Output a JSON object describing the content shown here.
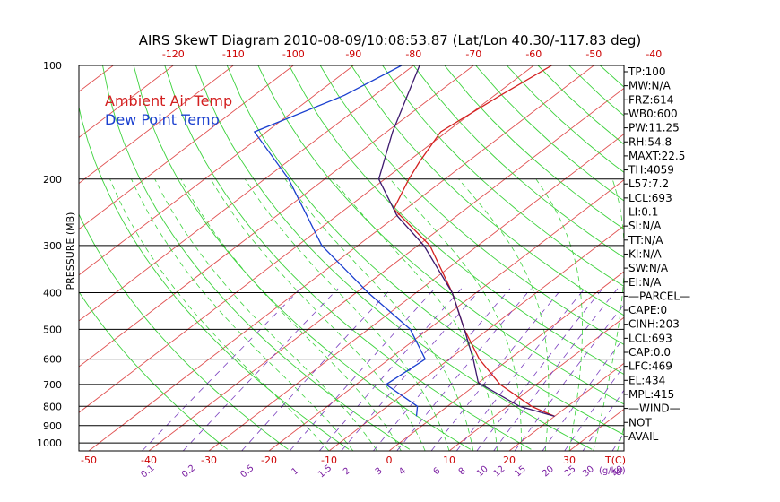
{
  "chart_data": {
    "type": "line",
    "title": "AIRS SkewT Diagram 2010-08-09/10:08:53.87 (Lat/Lon 40.30/-117.83 deg)",
    "ylabel": "PRESSURE (MB)",
    "xlabel_right": "T(C)",
    "mixing_unit_label": "(g/kg)",
    "legend": [
      {
        "label": "Ambient Air Temp",
        "color": "#d32020"
      },
      {
        "label": "Dew Point Temp",
        "color": "#1a3fcf"
      }
    ],
    "top_temp_ticks": [
      -120,
      -110,
      -100,
      -90,
      -80,
      -70,
      -60,
      -50,
      -40
    ],
    "bottom_temp_ticks": [
      -50,
      -40,
      -30,
      -20,
      -10,
      0,
      10,
      20,
      30
    ],
    "pressure_ticks": [
      100,
      200,
      300,
      400,
      500,
      600,
      700,
      800,
      900,
      1000
    ],
    "mixing_ratio_labels": [
      "0.1",
      "0.2",
      "0.5",
      "1",
      "1.5",
      "2",
      "3",
      "4",
      "6",
      "8",
      "10",
      "12",
      "15",
      "20",
      "25",
      "30",
      "40"
    ],
    "series": [
      {
        "name": "Ambient Air Temp",
        "color": "#d32020",
        "points": [
          {
            "p": 100,
            "t": -57
          },
          {
            "p": 120,
            "t": -59
          },
          {
            "p": 150,
            "t": -61
          },
          {
            "p": 180,
            "t": -58
          },
          {
            "p": 200,
            "t": -56
          },
          {
            "p": 240,
            "t": -52
          },
          {
            "p": 300,
            "t": -38
          },
          {
            "p": 400,
            "t": -24
          },
          {
            "p": 500,
            "t": -14
          },
          {
            "p": 600,
            "t": -5
          },
          {
            "p": 700,
            "t": 4
          },
          {
            "p": 800,
            "t": 14
          },
          {
            "p": 850,
            "t": 20
          }
        ]
      },
      {
        "name": "Parcel Path",
        "color": "#3d1a6e",
        "points": [
          {
            "p": 100,
            "t": -79
          },
          {
            "p": 150,
            "t": -69
          },
          {
            "p": 200,
            "t": -61
          },
          {
            "p": 250,
            "t": -50
          },
          {
            "p": 300,
            "t": -39
          },
          {
            "p": 400,
            "t": -24
          },
          {
            "p": 500,
            "t": -14
          },
          {
            "p": 600,
            "t": -6
          },
          {
            "p": 693,
            "t": 0
          },
          {
            "p": 800,
            "t": 12
          },
          {
            "p": 850,
            "t": 20
          }
        ]
      },
      {
        "name": "Dew Point Temp",
        "color": "#1a3fcf",
        "points": [
          {
            "p": 100,
            "t": -82
          },
          {
            "p": 120,
            "t": -85
          },
          {
            "p": 150,
            "t": -92
          },
          {
            "p": 200,
            "t": -76
          },
          {
            "p": 300,
            "t": -56
          },
          {
            "p": 400,
            "t": -38
          },
          {
            "p": 500,
            "t": -23
          },
          {
            "p": 600,
            "t": -14
          },
          {
            "p": 700,
            "t": -15
          },
          {
            "p": 800,
            "t": -5
          },
          {
            "p": 850,
            "t": -3
          }
        ]
      }
    ],
    "indices": [
      "TP:100",
      "MW:N/A",
      "FRZ:614",
      "WB0:600",
      "PW:11.25",
      "RH:54.8",
      "MAXT:22.5",
      "TH:4059",
      "L57:7.2",
      "LCL:693",
      "LI:0.1",
      "SI:N/A",
      "TT:N/A",
      "KI:N/A",
      "SW:N/A",
      "EI:N/A",
      "—PARCEL—",
      "CAPE:0",
      "CINH:203",
      "LCL:693",
      "CAP:0.0",
      "LFC:469",
      "EL:434",
      "MPL:415",
      "—WIND—",
      "NOT",
      "AVAIL"
    ]
  }
}
